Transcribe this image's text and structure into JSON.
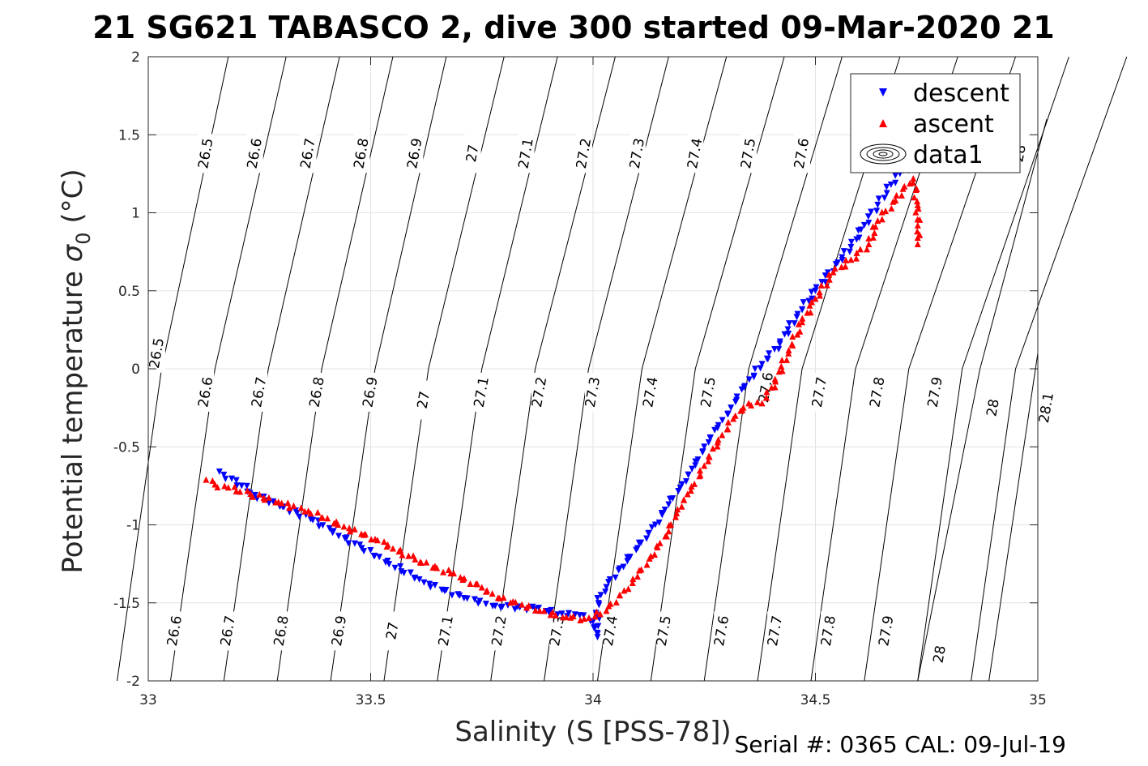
{
  "chart_data": {
    "type": "scatter",
    "title": "21 SG621 TABASCO 2, dive 300 started 09-Mar-2020 21",
    "xlabel": "Salinity (S [PSS-78])",
    "ylabel_main": "Potential temperature ",
    "ylabel_sigma": "σ",
    "ylabel_sub": "0",
    "ylabel_unit": " (°C)",
    "xlim": [
      33,
      35
    ],
    "ylim": [
      -2,
      2
    ],
    "xticks": [
      33,
      33.5,
      34,
      34.5,
      35
    ],
    "xtick_labels": [
      "33",
      "33.5",
      "34",
      "34.5",
      "35"
    ],
    "yticks": [
      -2,
      -1.5,
      -1,
      -0.5,
      0,
      0.5,
      1,
      1.5,
      2
    ],
    "ytick_labels": [
      "-2",
      "-1.5",
      "-1",
      "-0.5",
      "0",
      "0.5",
      "1",
      "1.5",
      "2"
    ],
    "grid": true,
    "legend_position": "top-right",
    "footer": "Serial #: 0365  CAL: 09-Jul-19",
    "colors": {
      "descent": "#0000ff",
      "ascent": "#ff0000",
      "isopycnal": "#000000",
      "grid": "#e3e3e3"
    },
    "series": [
      {
        "name": "descent",
        "marker": "triangle-down",
        "color": "#0000ff",
        "points": [
          [
            33.16,
            -0.66
          ],
          [
            33.17,
            -0.68
          ],
          [
            33.21,
            -0.75
          ],
          [
            33.24,
            -0.81
          ],
          [
            33.37,
            -0.97
          ],
          [
            33.48,
            -1.15
          ],
          [
            33.62,
            -1.37
          ],
          [
            33.71,
            -1.47
          ],
          [
            33.78,
            -1.52
          ],
          [
            33.87,
            -1.54
          ],
          [
            33.93,
            -1.57
          ],
          [
            33.97,
            -1.58
          ],
          [
            34.0,
            -1.62
          ],
          [
            34.01,
            -1.7
          ],
          [
            34.01,
            -1.72
          ],
          [
            34.01,
            -1.47
          ],
          [
            34.03,
            -1.4
          ],
          [
            34.06,
            -1.28
          ],
          [
            34.1,
            -1.15
          ],
          [
            34.14,
            -1.0
          ],
          [
            34.17,
            -0.87
          ],
          [
            34.2,
            -0.74
          ],
          [
            34.23,
            -0.62
          ],
          [
            34.25,
            -0.5
          ],
          [
            34.28,
            -0.38
          ],
          [
            34.31,
            -0.25
          ],
          [
            34.34,
            -0.12
          ],
          [
            34.38,
            0.03
          ],
          [
            34.42,
            0.16
          ],
          [
            34.46,
            0.35
          ],
          [
            34.5,
            0.5
          ],
          [
            34.55,
            0.68
          ],
          [
            34.58,
            0.78
          ],
          [
            34.61,
            0.92
          ],
          [
            34.64,
            1.05
          ],
          [
            34.67,
            1.18
          ],
          [
            34.69,
            1.25
          ],
          [
            34.71,
            1.27
          ]
        ]
      },
      {
        "name": "ascent",
        "marker": "triangle-up",
        "color": "#ff0000",
        "points": [
          [
            33.13,
            -0.71
          ],
          [
            33.15,
            -0.74
          ],
          [
            33.18,
            -0.76
          ],
          [
            33.23,
            -0.8
          ],
          [
            33.3,
            -0.86
          ],
          [
            33.36,
            -0.91
          ],
          [
            33.44,
            -1.01
          ],
          [
            33.51,
            -1.09
          ],
          [
            33.6,
            -1.22
          ],
          [
            33.68,
            -1.31
          ],
          [
            33.75,
            -1.4
          ],
          [
            33.79,
            -1.47
          ],
          [
            33.84,
            -1.51
          ],
          [
            33.88,
            -1.55
          ],
          [
            33.94,
            -1.59
          ],
          [
            33.98,
            -1.6
          ],
          [
            34.03,
            -1.55
          ],
          [
            34.07,
            -1.42
          ],
          [
            34.1,
            -1.33
          ],
          [
            34.13,
            -1.2
          ],
          [
            34.17,
            -1.04
          ],
          [
            34.19,
            -0.9
          ],
          [
            34.22,
            -0.78
          ],
          [
            34.25,
            -0.62
          ],
          [
            34.28,
            -0.47
          ],
          [
            34.32,
            -0.3
          ],
          [
            34.35,
            -0.22
          ],
          [
            34.38,
            -0.22
          ],
          [
            34.41,
            -0.08
          ],
          [
            34.44,
            0.12
          ],
          [
            34.47,
            0.3
          ],
          [
            34.5,
            0.45
          ],
          [
            34.54,
            0.62
          ],
          [
            34.58,
            0.7
          ],
          [
            34.62,
            0.8
          ],
          [
            34.64,
            0.95
          ],
          [
            34.68,
            1.08
          ],
          [
            34.7,
            1.17
          ],
          [
            34.72,
            1.22
          ],
          [
            34.73,
            1.05
          ],
          [
            34.73,
            0.92
          ],
          [
            34.73,
            0.8
          ]
        ]
      },
      {
        "name": "data1",
        "marker": "contour"
      }
    ],
    "isopycnal_labels": {
      "top": [
        "26.5",
        "26.6",
        "26.7",
        "26.8",
        "26.9",
        "27",
        "27.1",
        "27.2",
        "27.3",
        "27.4",
        "27.5",
        "27.6",
        "28"
      ],
      "middle": [
        "26.5",
        "26.6",
        "26.7",
        "26.8",
        "26.9",
        "27",
        "27.1",
        "27.2",
        "27.3",
        "27.4",
        "27.5",
        "27.6",
        "27.7",
        "27.8",
        "27.9",
        "28",
        "28.1"
      ],
      "bottom": [
        "26.6",
        "26.7",
        "26.8",
        "26.9",
        "27",
        "27.1",
        "27.2",
        "27.3",
        "27.4",
        "27.5",
        "27.6",
        "27.7",
        "27.8",
        "27.9",
        "28"
      ]
    }
  }
}
